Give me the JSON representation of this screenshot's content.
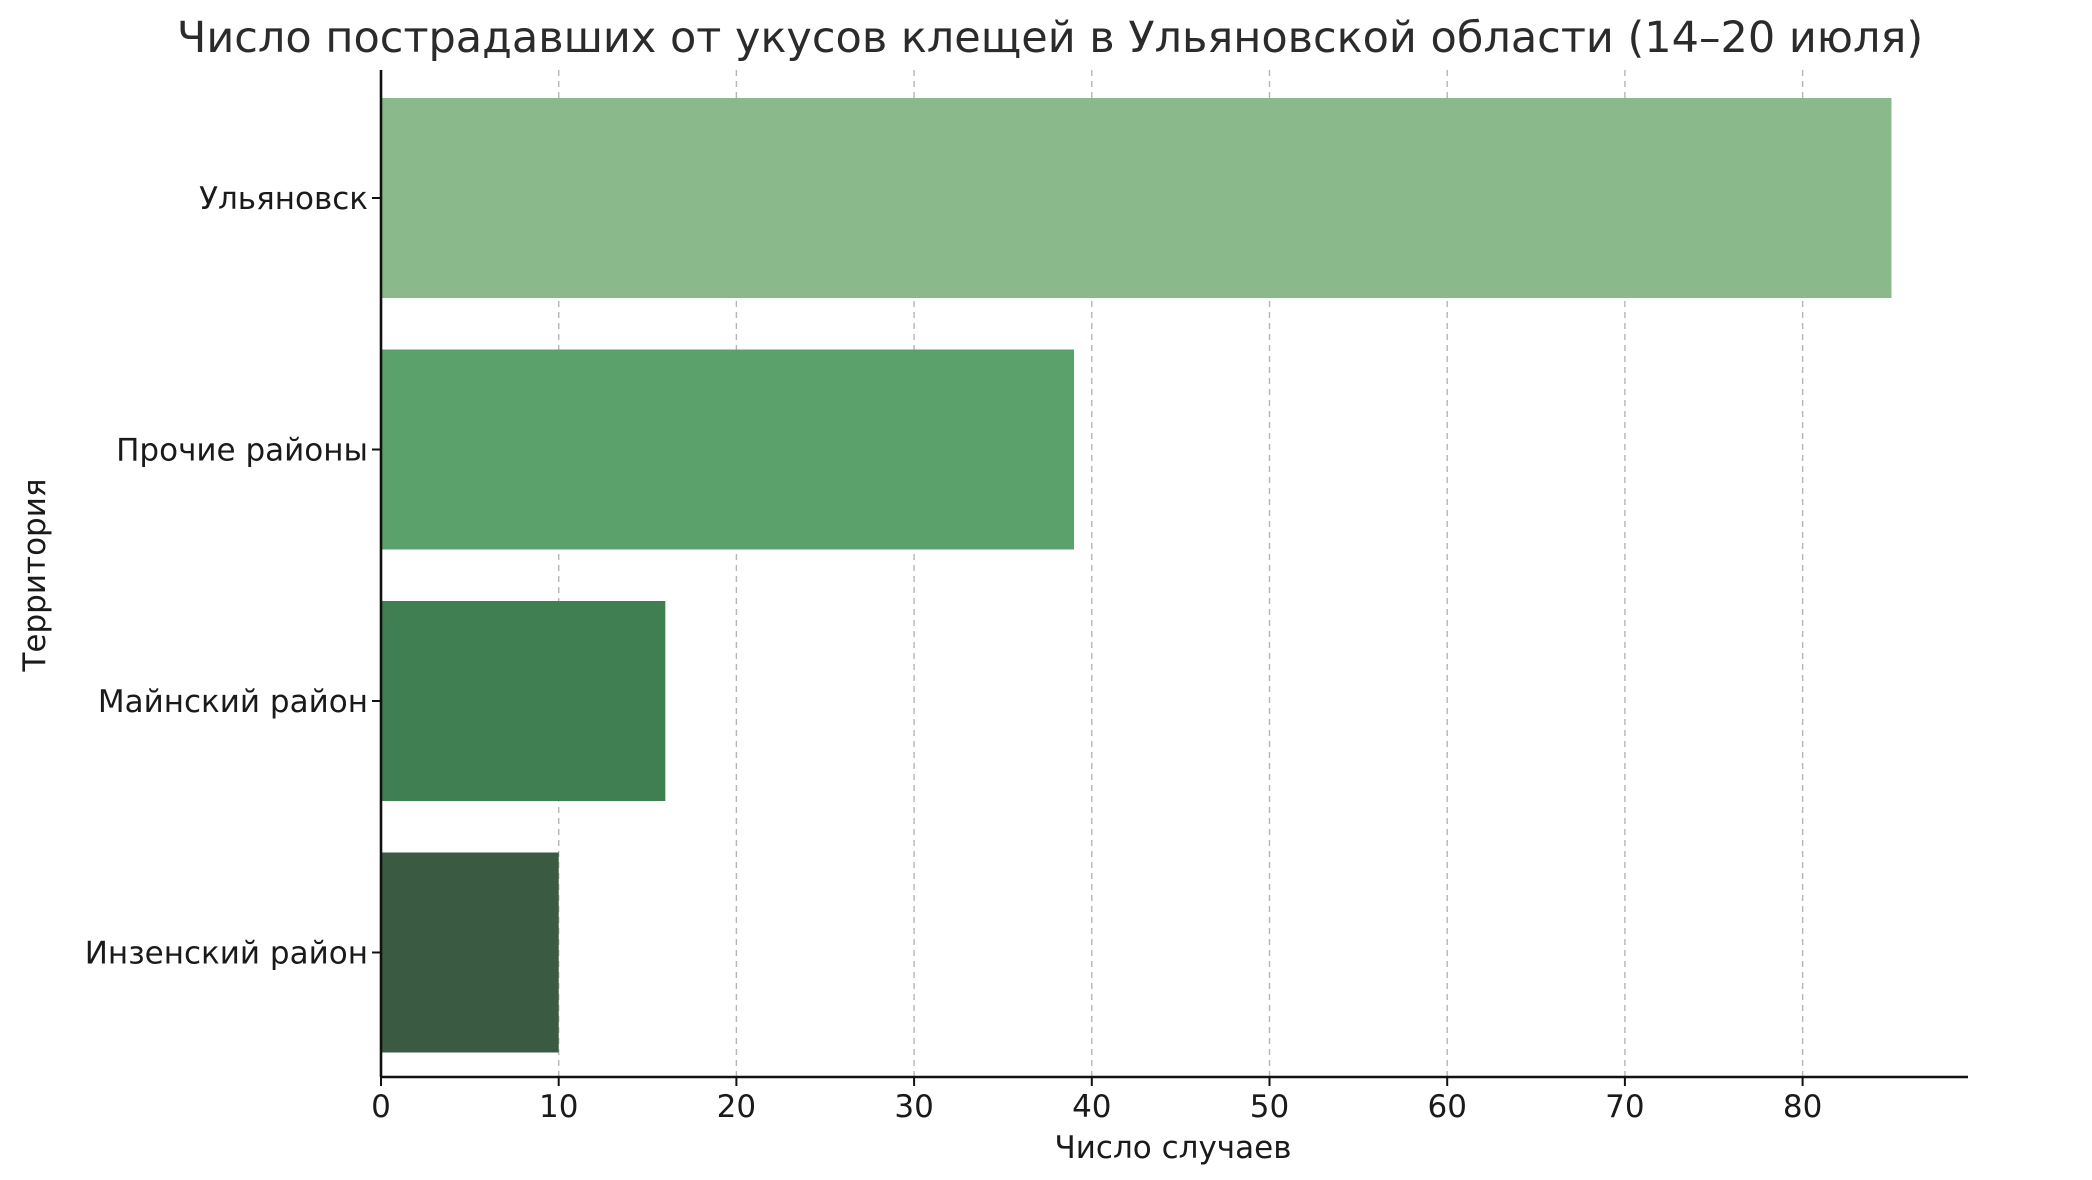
{
  "chart_data": {
    "type": "bar",
    "orientation": "horizontal",
    "title": "Число пострадавших от укусов клещей в Ульяновской области (14–20 июля)",
    "xlabel": "Число случаев",
    "ylabel": "Территория",
    "categories": [
      "Ульяновск",
      "Прочие районы",
      "Майнский район",
      "Инзенский район"
    ],
    "values": [
      85,
      39,
      16,
      10
    ],
    "colors": [
      "#8aba8b",
      "#5ba16b",
      "#3f7f52",
      "#3b5a42"
    ],
    "xlim": [
      0,
      89
    ],
    "xticks": [
      0,
      10,
      20,
      30,
      40,
      50,
      60,
      70,
      80
    ],
    "grid": "vertical-dashed",
    "legend": "none"
  }
}
